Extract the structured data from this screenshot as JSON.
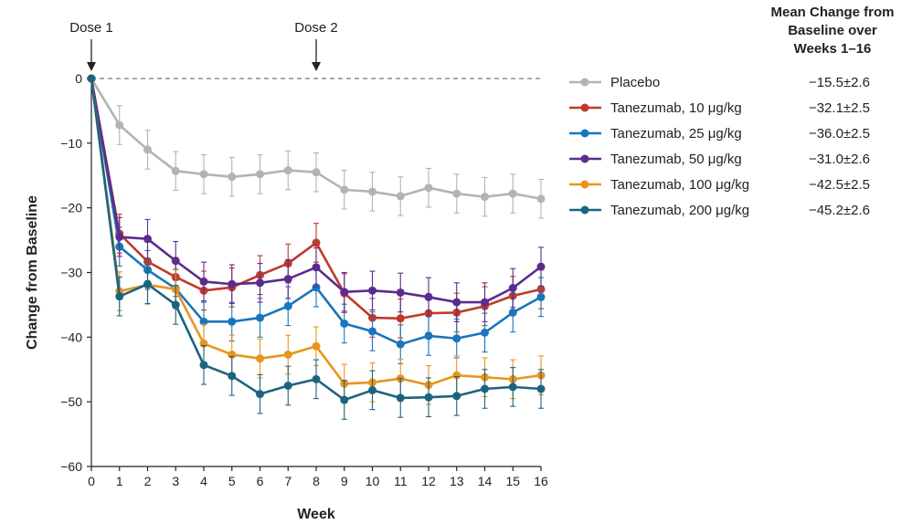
{
  "chart_data": {
    "type": "line",
    "xlabel": "Week",
    "ylabel": "Change from Baseline",
    "x": [
      0,
      1,
      2,
      3,
      4,
      5,
      6,
      7,
      8,
      9,
      10,
      11,
      12,
      13,
      14,
      15,
      16
    ],
    "xlim": [
      0,
      16
    ],
    "ylim": [
      -60,
      0
    ],
    "yticks": [
      0,
      -10,
      -20,
      -30,
      -40,
      -50,
      -60
    ],
    "ytick_labels": [
      "0",
      "−10",
      "−20",
      "−30",
      "−40",
      "−50",
      "−60"
    ],
    "annotations": [
      {
        "label": "Dose 1",
        "x": 0
      },
      {
        "label": "Dose 2",
        "x": 8
      }
    ],
    "summary_title": [
      "Mean Change from",
      "Baseline over",
      "Weeks 1–16"
    ],
    "series": [
      {
        "name": "Placebo",
        "color": "#b3b3b3",
        "summary": "−15.5±2.6",
        "values": [
          0,
          -7.2,
          -11.0,
          -14.3,
          -14.8,
          -15.2,
          -14.8,
          -14.2,
          -14.5,
          -17.2,
          -17.5,
          -18.2,
          -16.9,
          -17.8,
          -18.3,
          -17.8,
          -18.6
        ],
        "errors": [
          0,
          3,
          3,
          3,
          3,
          3,
          3,
          3,
          3,
          3,
          3,
          3,
          3,
          3,
          3,
          3,
          3
        ]
      },
      {
        "name": "Tanezumab, 10 μg/kg",
        "color": "#c0392b",
        "summary": "−32.1±2.5",
        "values": [
          0,
          -24.0,
          -28.3,
          -30.7,
          -32.8,
          -32.3,
          -30.4,
          -28.6,
          -25.4,
          -33.2,
          -37.0,
          -37.1,
          -36.3,
          -36.2,
          -35.2,
          -33.6,
          -32.6
        ],
        "errors": [
          0,
          3,
          3,
          3,
          3,
          3,
          3,
          3,
          3,
          3,
          3,
          3,
          3,
          3,
          3,
          3,
          3
        ]
      },
      {
        "name": "Tanezumab, 25 μg/kg",
        "color": "#1a75bb",
        "summary": "−36.0±2.5",
        "values": [
          0,
          -26.0,
          -29.6,
          -32.5,
          -37.6,
          -37.6,
          -37.0,
          -35.2,
          -32.3,
          -37.9,
          -39.1,
          -41.1,
          -39.8,
          -40.2,
          -39.3,
          -36.2,
          -33.8
        ],
        "errors": [
          0,
          3,
          3,
          3,
          3,
          3,
          3,
          3,
          3,
          3,
          3,
          3,
          3,
          3,
          3,
          3,
          3
        ]
      },
      {
        "name": "Tanezumab, 50 μg/kg",
        "color": "#5b2c8e",
        "summary": "−31.0±2.6",
        "values": [
          0,
          -24.5,
          -24.8,
          -28.2,
          -31.4,
          -31.8,
          -31.6,
          -31.0,
          -29.2,
          -33.0,
          -32.8,
          -33.1,
          -33.8,
          -34.6,
          -34.6,
          -32.4,
          -29.1
        ],
        "errors": [
          0,
          3,
          3,
          3,
          3,
          3,
          3,
          3,
          3,
          3,
          3,
          3,
          3,
          3,
          3,
          3,
          3
        ]
      },
      {
        "name": "Tanezumab, 100 μg/kg",
        "color": "#e8951c",
        "summary": "−42.5±2.5",
        "values": [
          0,
          -32.9,
          -31.9,
          -32.6,
          -41.0,
          -42.7,
          -43.3,
          -42.7,
          -41.4,
          -47.2,
          -47.0,
          -46.4,
          -47.4,
          -45.9,
          -46.2,
          -46.5,
          -45.9
        ],
        "errors": [
          0,
          3,
          3,
          3,
          3,
          3,
          3,
          3,
          3,
          3,
          3,
          3,
          3,
          3,
          3,
          3,
          3
        ]
      },
      {
        "name": "Tanezumab, 200 μg/kg",
        "color": "#1b6480",
        "summary": "−45.2±2.6",
        "values": [
          0,
          -33.7,
          -31.8,
          -35.0,
          -44.3,
          -46.0,
          -48.8,
          -47.5,
          -46.5,
          -49.7,
          -48.2,
          -49.4,
          -49.3,
          -49.1,
          -48.0,
          -47.7,
          -48.0
        ],
        "errors": [
          0,
          3,
          3,
          3,
          3,
          3,
          3,
          3,
          3,
          3,
          3,
          3,
          3,
          3,
          3,
          3,
          3
        ]
      }
    ]
  }
}
